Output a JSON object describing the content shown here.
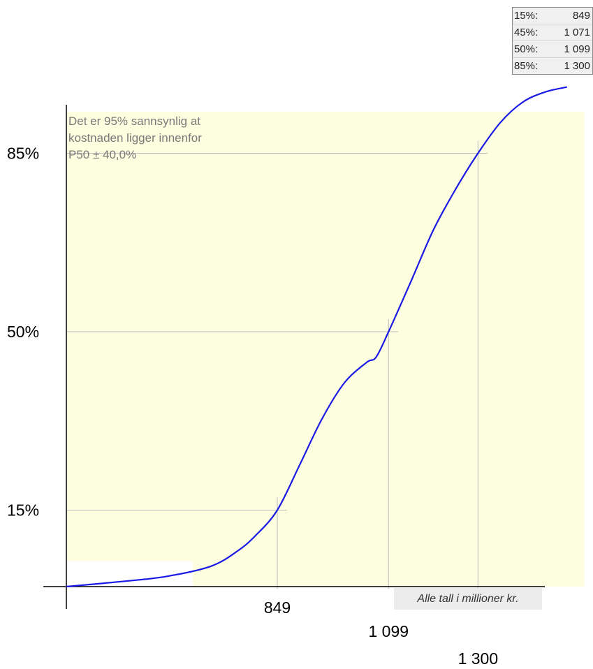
{
  "percentile_table": [
    {
      "label": "15%:",
      "value": "849"
    },
    {
      "label": "45%:",
      "value": "1 071"
    },
    {
      "label": "50%:",
      "value": "1 099"
    },
    {
      "label": "85%:",
      "value": "1 300"
    }
  ],
  "annotation_lines": [
    "Det er 95% sannsynlig at",
    "kostnaden ligger innenfor",
    "P50 ± 40,0%"
  ],
  "unit_note": "Alle tall i millioner kr.",
  "colors": {
    "curve": "#1a1ae6",
    "band": "#fdfde0",
    "gridline": "#bdbdbd",
    "axis": "#000000"
  },
  "chart_data": {
    "type": "line",
    "series": [
      {
        "values": [
          {
            "x": 375,
            "y": 0
          },
          {
            "x": 500,
            "y": 1
          },
          {
            "x": 600,
            "y": 2
          },
          {
            "x": 700,
            "y": 4
          },
          {
            "x": 760,
            "y": 7
          },
          {
            "x": 800,
            "y": 10
          },
          {
            "x": 849,
            "y": 15
          },
          {
            "x": 900,
            "y": 24
          },
          {
            "x": 950,
            "y": 33
          },
          {
            "x": 1000,
            "y": 40
          },
          {
            "x": 1050,
            "y": 44
          },
          {
            "x": 1071,
            "y": 45
          },
          {
            "x": 1099,
            "y": 50
          },
          {
            "x": 1150,
            "y": 60
          },
          {
            "x": 1200,
            "y": 70
          },
          {
            "x": 1250,
            "y": 78
          },
          {
            "x": 1300,
            "y": 85
          },
          {
            "x": 1350,
            "y": 91
          },
          {
            "x": 1400,
            "y": 95
          },
          {
            "x": 1450,
            "y": 97
          },
          {
            "x": 1500,
            "y": 98
          }
        ]
      }
    ],
    "x_ticks": [
      {
        "value": 849,
        "label": "849"
      },
      {
        "value": 1099,
        "label": "1 099"
      },
      {
        "value": 1300,
        "label": "1 300"
      }
    ],
    "y_ticks": [
      {
        "value": 15,
        "label": "15%"
      },
      {
        "value": 50,
        "label": "50%"
      },
      {
        "value": 85,
        "label": "85%"
      }
    ],
    "confidence_band": {
      "x_from": 659,
      "x_to": 1539,
      "y_from": 5
    },
    "xlim": [
      375,
      1560
    ],
    "ylim": [
      0,
      100
    ],
    "grid": false,
    "legend": "none"
  }
}
